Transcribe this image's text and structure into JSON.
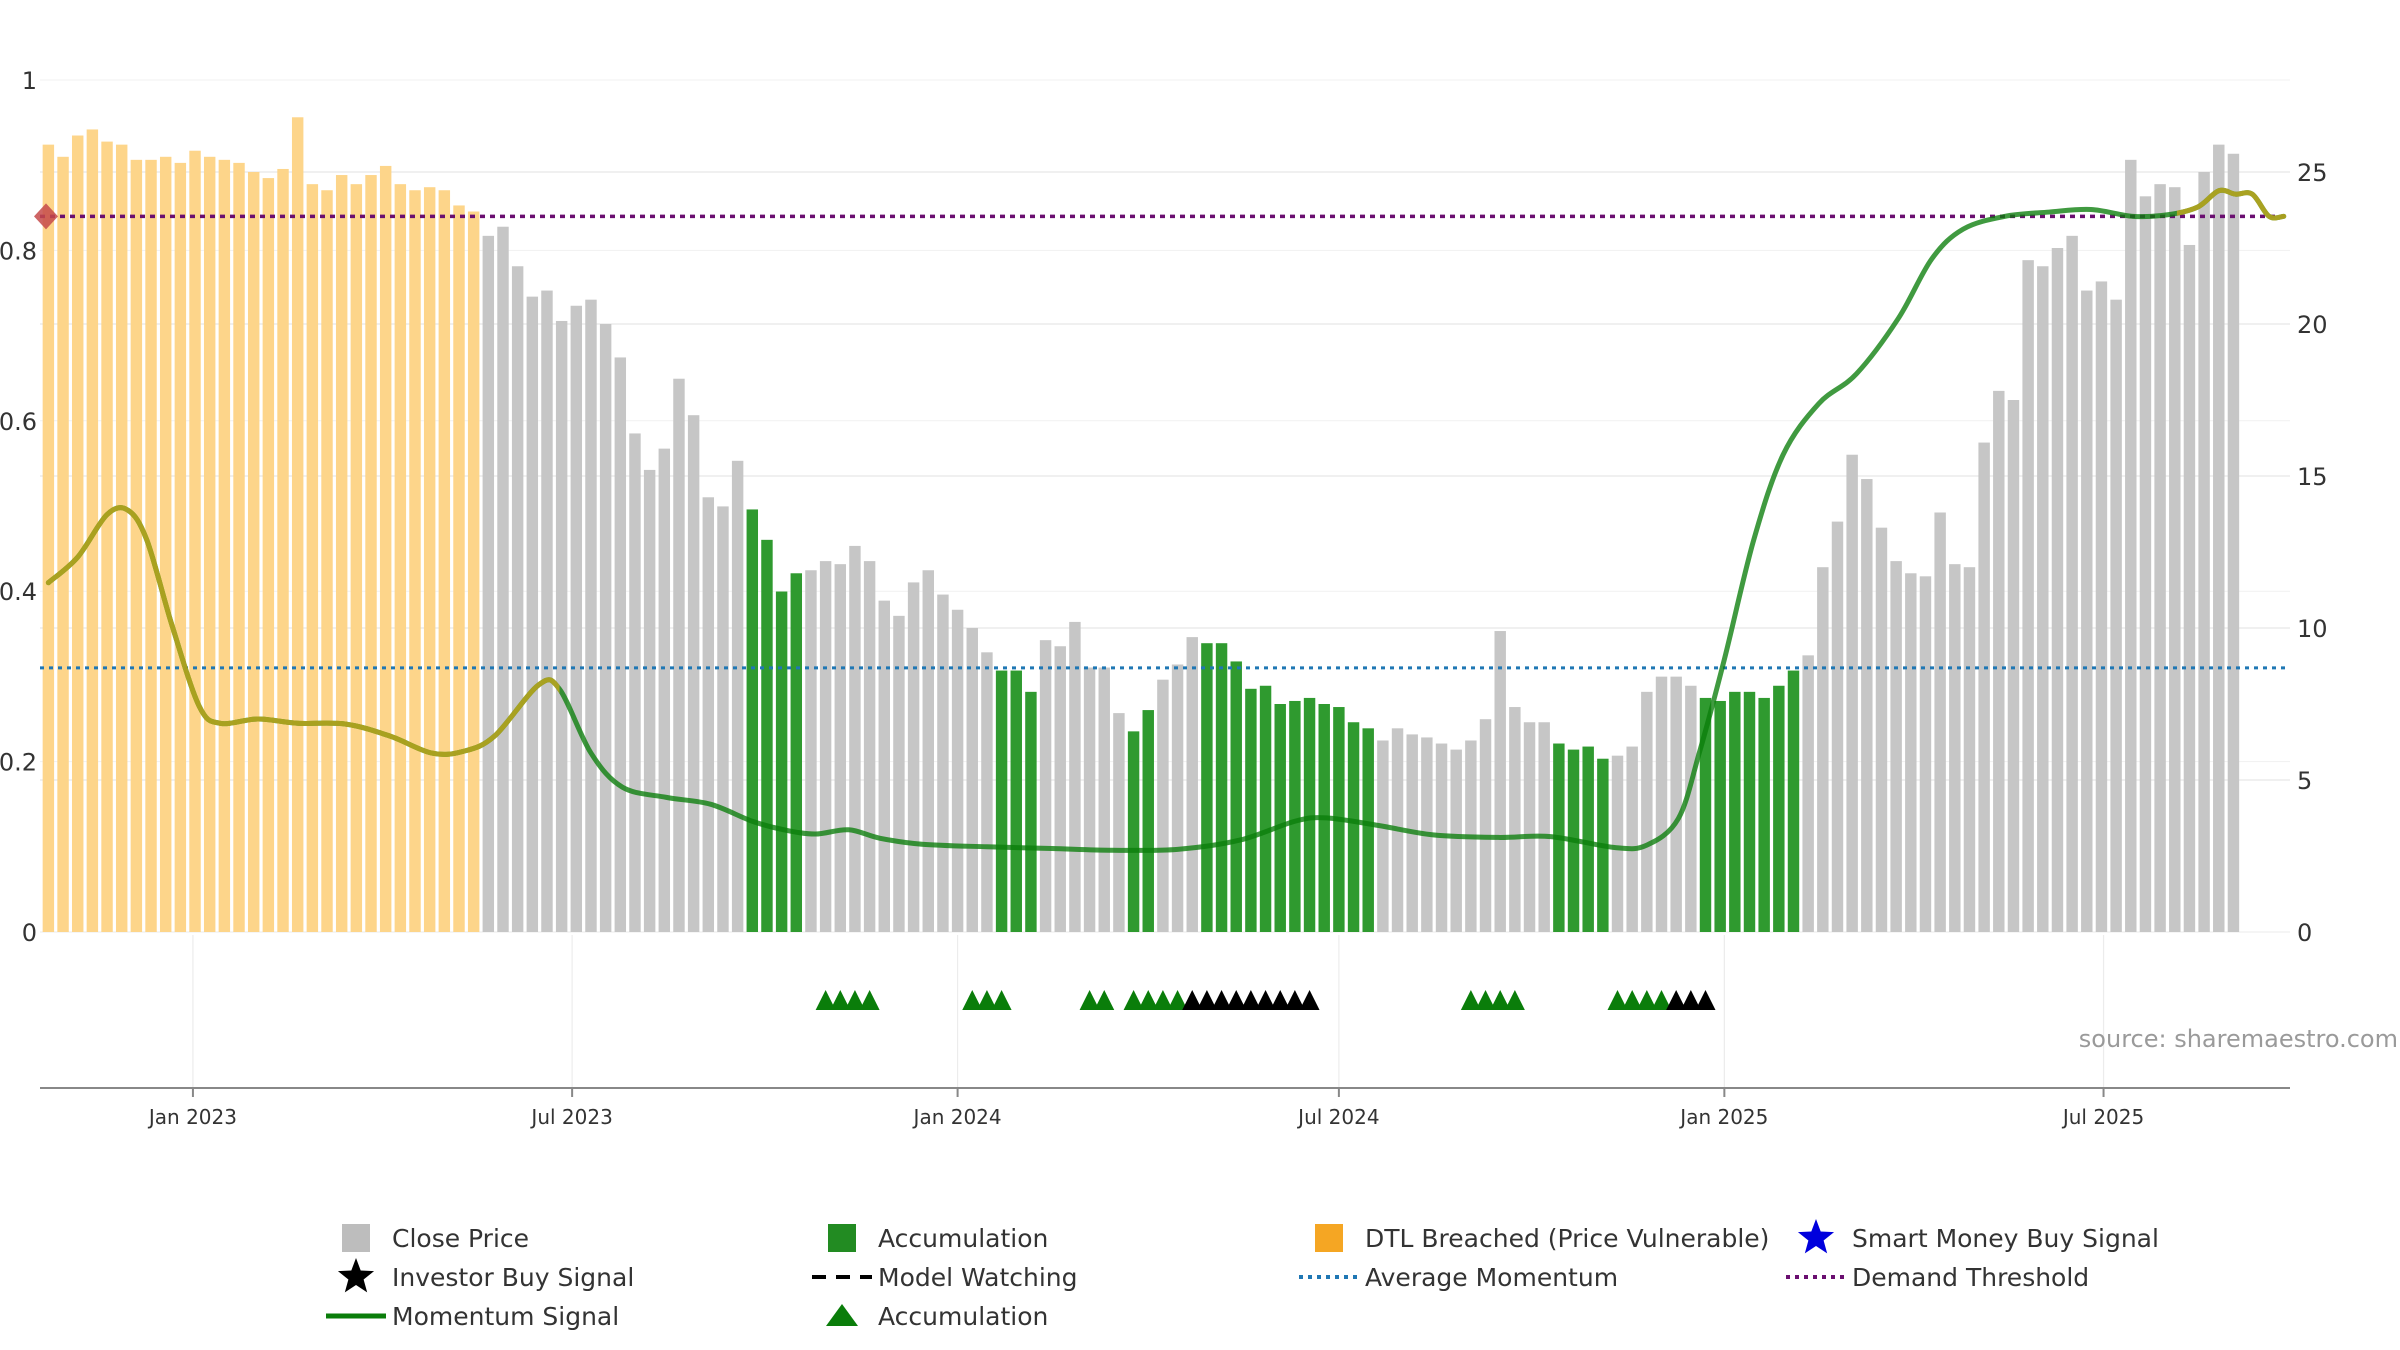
{
  "chart_data": {
    "type": "bar",
    "watermark": "source: sharemaestro.com",
    "left_axis": {
      "ticks": [
        "0",
        "0.2",
        "0.4",
        "0.6",
        "0.8",
        "1"
      ],
      "range": [
        0,
        1
      ]
    },
    "right_axis": {
      "ticks": [
        "0",
        "5",
        "10",
        "15",
        "20",
        "25"
      ],
      "range": [
        0,
        25
      ]
    },
    "x_axis": {
      "range": [
        "2022-10-20",
        "2025-09-28"
      ],
      "ticks": [
        {
          "date": "2023-01-01",
          "label": "Jan 2023"
        },
        {
          "date": "2023-07-01",
          "label": "Jul 2023"
        },
        {
          "date": "2024-01-01",
          "label": "Jan 2024"
        },
        {
          "date": "2024-07-01",
          "label": "Jul 2024"
        },
        {
          "date": "2025-01-01",
          "label": "Jan 2025"
        },
        {
          "date": "2025-07-01",
          "label": "Jul 2025"
        }
      ]
    },
    "price_bars": {
      "start_week": "2022-10-24",
      "interval": "weekly",
      "values": [
        25.9,
        25.5,
        26.2,
        26.4,
        26.0,
        25.9,
        25.4,
        25.4,
        25.5,
        25.3,
        25.7,
        25.5,
        25.4,
        25.3,
        25.0,
        24.8,
        25.1,
        26.8,
        24.6,
        24.4,
        24.9,
        24.6,
        24.9,
        25.2,
        24.6,
        24.4,
        24.5,
        24.4,
        23.9,
        23.7,
        22.9,
        23.2,
        21.9,
        20.9,
        21.1,
        20.1,
        20.6,
        20.8,
        20.0,
        18.9,
        16.4,
        15.2,
        15.9,
        18.2,
        17.0,
        14.3,
        14.0,
        15.5,
        13.9,
        12.9,
        11.2,
        11.8,
        11.9,
        12.2,
        12.1,
        12.7,
        12.2,
        10.9,
        10.4,
        11.5,
        11.9,
        11.1,
        10.6,
        10.0,
        9.2,
        8.6,
        8.6,
        7.9,
        9.6,
        9.4,
        10.2,
        8.7,
        8.7,
        7.2,
        6.6,
        7.3,
        8.3,
        8.8,
        9.7,
        9.5,
        9.5,
        8.9,
        8.0,
        8.1,
        7.5,
        7.6,
        7.7,
        7.5,
        7.4,
        6.9,
        6.7,
        6.3,
        6.7,
        6.5,
        6.4,
        6.2,
        6.0,
        6.3,
        7.0,
        9.9,
        7.4,
        6.9,
        6.9,
        6.2,
        6.0,
        6.1,
        5.7,
        5.8,
        6.1,
        7.9,
        8.4,
        8.4,
        8.1,
        7.7,
        7.6,
        7.9,
        7.9,
        7.7,
        8.1,
        8.6,
        9.1,
        12.0,
        13.5,
        15.7,
        14.9,
        13.3,
        12.2,
        11.8,
        11.7,
        13.8,
        12.1,
        12.0,
        16.1,
        17.8,
        17.5,
        22.1,
        21.9,
        22.5,
        22.9,
        21.1,
        21.4,
        20.8,
        25.4,
        24.2,
        24.6,
        24.5,
        22.6,
        25.0,
        25.9,
        25.6
      ],
      "status": "OOOOOOOOOOOOOOOOOOOOOOOOOOOOOOGGGGGGGGGGGGGGGGGGAAAAGGGGGGGGGGGGGAAAGGGGGGAAGGGAAAAAAAAAAAAGGGGGGGGGGGGAAAAGGGGGGAAAAAAAGGGGGGGGGGGGGGGGGGGGGGGGGGGGGGGOOOOOGOOO",
      "legend": {
        "O": "DTL Breached (Price Vulnerable)",
        "G": "Close Price",
        "A": "Accumulation"
      }
    },
    "momentum_signal": {
      "points": [
        [
          "2022-10-24",
          0.41
        ],
        [
          "2022-11-07",
          0.44
        ],
        [
          "2022-11-21",
          0.49
        ],
        [
          "2022-12-01",
          0.495
        ],
        [
          "2022-12-10",
          0.46
        ],
        [
          "2022-12-22",
          0.36
        ],
        [
          "2023-01-04",
          0.265
        ],
        [
          "2023-01-14",
          0.245
        ],
        [
          "2023-02-01",
          0.25
        ],
        [
          "2023-02-20",
          0.245
        ],
        [
          "2023-03-15",
          0.244
        ],
        [
          "2023-04-05",
          0.23
        ],
        [
          "2023-04-25",
          0.21
        ],
        [
          "2023-05-10",
          0.212
        ],
        [
          "2023-05-25",
          0.23
        ],
        [
          "2023-06-15",
          0.29
        ],
        [
          "2023-06-25",
          0.285
        ],
        [
          "2023-07-10",
          0.21
        ],
        [
          "2023-07-25",
          0.17
        ],
        [
          "2023-08-15",
          0.158
        ],
        [
          "2023-09-05",
          0.15
        ],
        [
          "2023-09-25",
          0.13
        ],
        [
          "2023-10-10",
          0.12
        ],
        [
          "2023-10-25",
          0.115
        ],
        [
          "2023-11-10",
          0.12
        ],
        [
          "2023-11-25",
          0.11
        ],
        [
          "2023-12-15",
          0.103
        ],
        [
          "2024-01-15",
          0.1
        ],
        [
          "2024-02-15",
          0.098
        ],
        [
          "2024-03-15",
          0.096
        ],
        [
          "2024-04-15",
          0.097
        ],
        [
          "2024-05-15",
          0.108
        ],
        [
          "2024-06-10",
          0.13
        ],
        [
          "2024-06-25",
          0.134
        ],
        [
          "2024-07-20",
          0.125
        ],
        [
          "2024-08-15",
          0.114
        ],
        [
          "2024-09-15",
          0.111
        ],
        [
          "2024-10-10",
          0.112
        ],
        [
          "2024-11-10",
          0.099
        ],
        [
          "2024-11-25",
          0.102
        ],
        [
          "2024-12-10",
          0.133
        ],
        [
          "2024-12-20",
          0.21
        ],
        [
          "2025-01-01",
          0.32
        ],
        [
          "2025-01-15",
          0.46
        ],
        [
          "2025-01-29",
          0.56
        ],
        [
          "2025-02-15",
          0.62
        ],
        [
          "2025-03-05",
          0.655
        ],
        [
          "2025-03-25",
          0.72
        ],
        [
          "2025-04-10",
          0.79
        ],
        [
          "2025-04-25",
          0.825
        ],
        [
          "2025-05-15",
          0.84
        ],
        [
          "2025-06-05",
          0.845
        ],
        [
          "2025-06-25",
          0.848
        ],
        [
          "2025-07-15",
          0.84
        ],
        [
          "2025-08-01",
          0.842
        ],
        [
          "2025-08-15",
          0.851
        ],
        [
          "2025-08-25",
          0.87
        ],
        [
          "2025-09-02",
          0.866
        ],
        [
          "2025-09-10",
          0.866
        ],
        [
          "2025-09-18",
          0.84
        ],
        [
          "2025-09-25",
          0.84
        ]
      ],
      "highlight_ranges": [
        [
          "2022-10-20",
          "2023-06-25"
        ],
        [
          "2025-08-05",
          "2025-09-28"
        ]
      ]
    },
    "average_momentum": 0.31,
    "demand_threshold": 0.84,
    "accumulation_triangles": [
      "2023-10-30",
      "2023-11-06",
      "2023-11-13",
      "2023-11-20",
      "2024-01-08",
      "2024-01-15",
      "2024-01-22",
      "2024-03-04",
      "2024-03-11",
      "2024-03-25",
      "2024-04-01",
      "2024-04-08",
      "2024-04-15",
      "2024-09-02",
      "2024-09-09",
      "2024-09-16",
      "2024-09-23",
      "2024-11-11",
      "2024-11-18",
      "2024-11-25",
      "2024-12-02"
    ],
    "investor_triangles": [
      "2024-04-22",
      "2024-04-29",
      "2024-05-06",
      "2024-05-13",
      "2024-05-20",
      "2024-05-27",
      "2024-06-03",
      "2024-06-10",
      "2024-06-17",
      "2024-12-09",
      "2024-12-16",
      "2024-12-23"
    ],
    "legend": [
      {
        "label": "Close Price",
        "symbol": "square",
        "color": "#bdbdbd"
      },
      {
        "label": "Accumulation",
        "symbol": "square",
        "color": "#228b22"
      },
      {
        "label": "DTL Breached (Price Vulnerable)",
        "symbol": "square",
        "color": "#f5a623"
      },
      {
        "label": "Smart Money Buy Signal",
        "symbol": "star",
        "color": "#0000dd"
      },
      {
        "label": "Investor Buy Signal",
        "symbol": "star",
        "color": "#000000"
      },
      {
        "label": "Model Watching",
        "symbol": "dash",
        "color": "#000000"
      },
      {
        "label": "Average Momentum",
        "symbol": "dotted",
        "color": "#1f77b4"
      },
      {
        "label": "Demand Threshold",
        "symbol": "dotted",
        "color": "#6a0f70"
      },
      {
        "label": "Momentum Signal",
        "symbol": "line",
        "color": "#0a7d0a"
      },
      {
        "label": "Accumulation",
        "symbol": "triangle",
        "color": "#0a7d0a"
      }
    ],
    "colors": {
      "dtl": "#fdd58a",
      "price": "#c6c6c6",
      "accumulation": "#2f9a2f",
      "momentum": "#0a7d0a",
      "momentum_highlight": "#b5a31f",
      "average": "#1f77b4",
      "threshold": "#6a0f70",
      "marker": "#c64a4a",
      "triangle_acc": "#0a7d0a",
      "triangle_inv": "#000000",
      "grid": "#e6e6e6",
      "axis": "#888888",
      "watermark": "#9a9a9a"
    }
  }
}
